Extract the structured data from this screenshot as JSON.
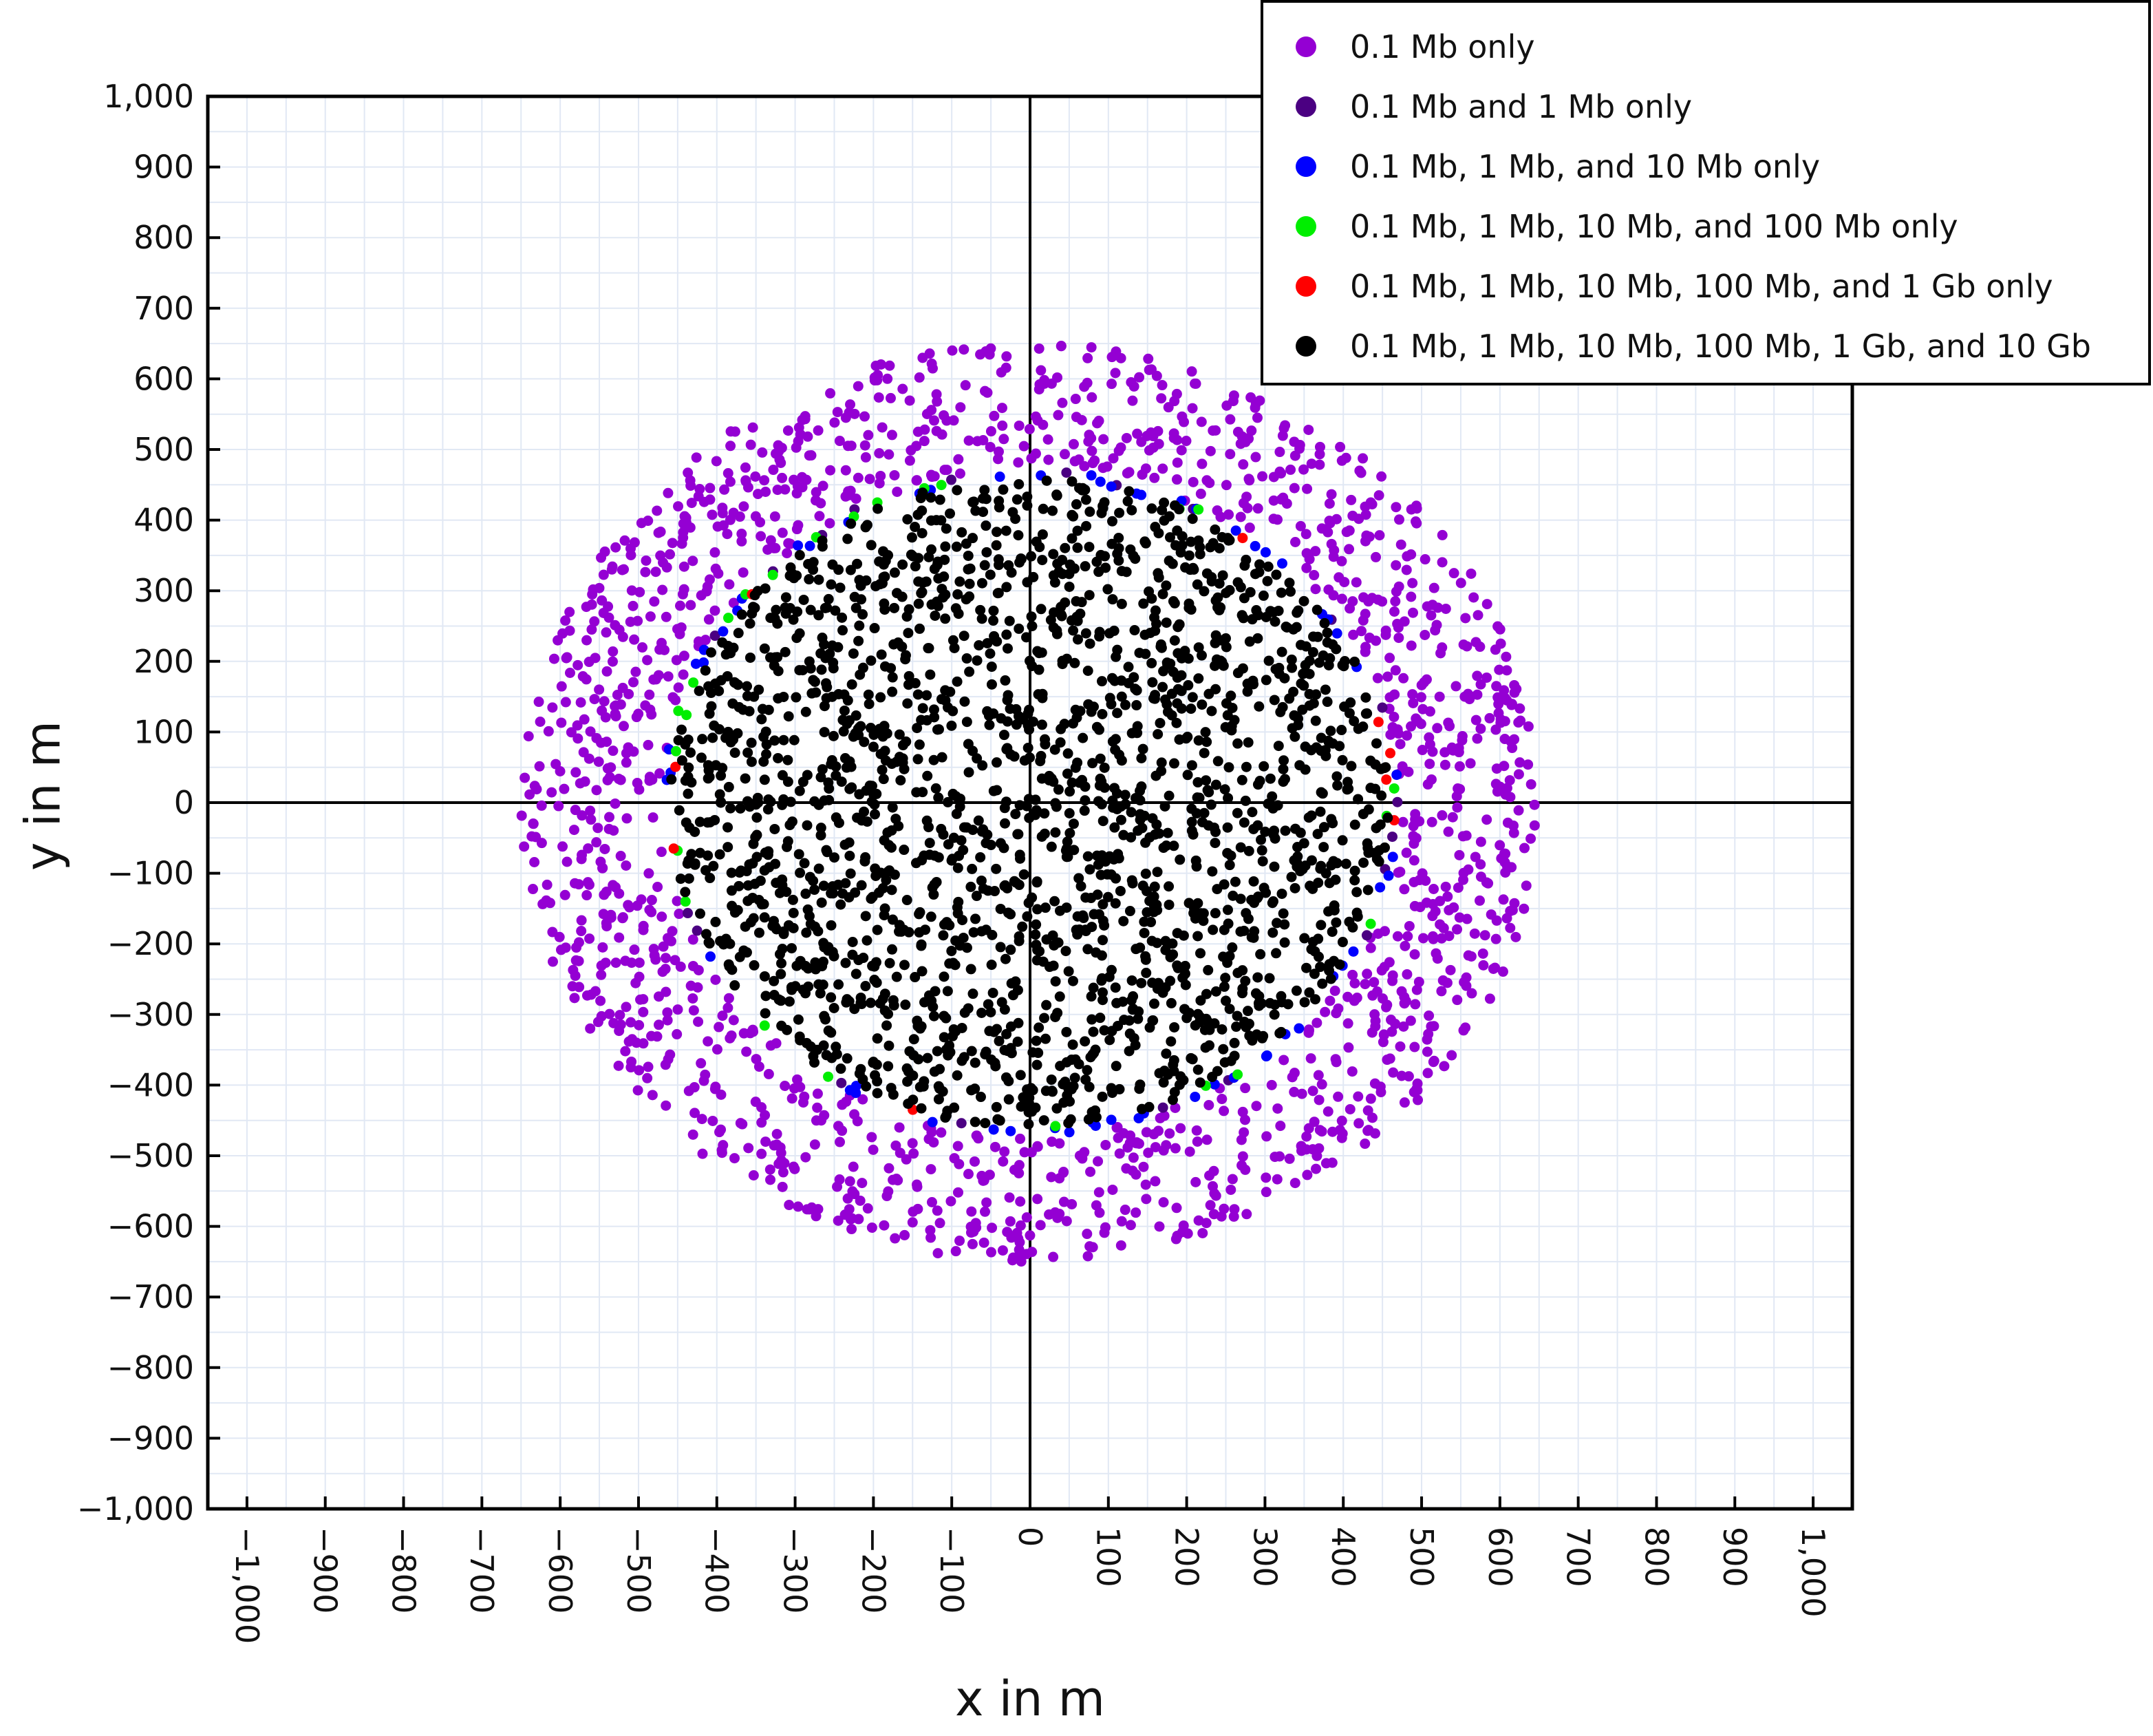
{
  "chart_data": {
    "type": "scatter",
    "title": "",
    "xlabel": "x in m",
    "ylabel": "y in m",
    "xlim": [
      -1050,
      1050
    ],
    "ylim": [
      -1000,
      1000
    ],
    "grid": true,
    "grid_minor_step": 50,
    "x_ticks": [
      -1000,
      -900,
      -800,
      -700,
      -600,
      -500,
      -400,
      -300,
      -200,
      -100,
      0,
      100,
      200,
      300,
      400,
      500,
      600,
      700,
      800,
      900,
      1000
    ],
    "x_tick_labels": [
      "−1,000",
      "−900",
      "−800",
      "−700",
      "−600",
      "−500",
      "−400",
      "−300",
      "−200",
      "−100",
      "0",
      "100",
      "200",
      "300",
      "400",
      "500",
      "600",
      "700",
      "800",
      "900",
      "1,000"
    ],
    "y_ticks": [
      1000,
      900,
      800,
      700,
      600,
      500,
      400,
      300,
      200,
      100,
      0,
      -100,
      -200,
      -300,
      -400,
      -500,
      -600,
      -700,
      -800,
      -900,
      -1000
    ],
    "y_tick_labels": [
      "1,000",
      "900",
      "800",
      "700",
      "600",
      "500",
      "400",
      "300",
      "200",
      "100",
      "0",
      "−100",
      "−200",
      "−300",
      "−400",
      "−500",
      "−600",
      "−700",
      "−800",
      "−900",
      "−1,000"
    ],
    "x_tick_rotation_deg": 90,
    "legend_position": "top-right",
    "colors": {
      "grid": "#e1e8f4",
      "axes": "#000000"
    },
    "series": [
      {
        "name": "0.1 Mb only",
        "color": "#9400d3",
        "count": 1500,
        "r_min": 470,
        "r_max": 650
      },
      {
        "name": "0.1 Mb and 1 Mb only",
        "color": "#4b0082",
        "count": 20,
        "r_min": 462,
        "r_max": 472
      },
      {
        "name": "0.1 Mb, 1 Mb, and 10 Mb only",
        "color": "#0000ff",
        "count": 60,
        "r_min": 458,
        "r_max": 470
      },
      {
        "name": "0.1 Mb, 1 Mb, 10 Mb, and 100 Mb only",
        "color": "#00ee00",
        "count": 16,
        "r_min": 455,
        "r_max": 468
      },
      {
        "name": "0.1 Mb, 1 Mb, 10 Mb, 100 Mb, and 1 Gb only",
        "color": "#ff0000",
        "count": 5,
        "r_min": 455,
        "r_max": 465
      },
      {
        "name": "0.1 Mb, 1 Mb, 10 Mb, 100 Mb, 1 Gb, and 10 Gb",
        "color": "#000000",
        "count": 2000,
        "r_min": 0,
        "r_max": 460
      }
    ],
    "sample_points": {
      "0.1 Mb, 1 Mb, 10 Mb, 100 Mb, and 1 Gb only": [
        [
          -455,
          -65
        ],
        [
          460,
          70
        ],
        [
          465,
          -25
        ],
        [
          -355,
          295
        ]
      ],
      "0.1 Mb, 1 Mb, 10 Mb, and 100 Mb only": [
        [
          -225,
          405
        ],
        [
          -195,
          425
        ],
        [
          -135,
          445
        ],
        [
          215,
          415
        ],
        [
          -430,
          170
        ],
        [
          -440,
          -140
        ],
        [
          265,
          -385
        ],
        [
          465,
          20
        ]
      ]
    },
    "note_distribution": "points are uniformly distributed in an annulus/disc; exact positions not recoverable"
  }
}
